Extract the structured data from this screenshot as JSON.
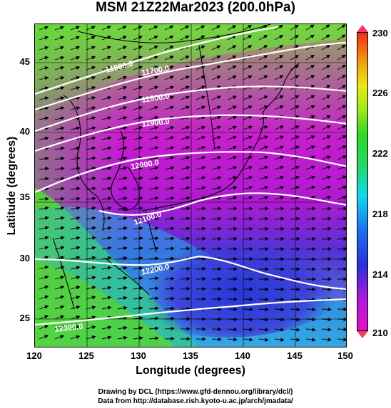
{
  "title": "MSM 21Z22Mar2023 (200.0hPa)",
  "axes": {
    "xlabel": "Longitude (degrees)",
    "ylabel": "Latitude  (degrees)",
    "x_ticks": [
      "120",
      "125",
      "130",
      "135",
      "140",
      "145",
      "150"
    ],
    "y_ticks": [
      "45",
      "40",
      "35",
      "30",
      "25"
    ]
  },
  "colorbar": {
    "labels": [
      "230",
      "226",
      "222",
      "218",
      "214",
      "210"
    ],
    "colors": [
      "#e014c6",
      "#b01ad8",
      "#2830d8",
      "#1c74ea",
      "#16d6ee",
      "#24d66a",
      "#36d628",
      "#9ce81c",
      "#e8e81a",
      "#f0a016",
      "#f02c14"
    ],
    "range": [
      210,
      230
    ]
  },
  "contours": [
    {
      "label": "11600.0"
    },
    {
      "label": "11700.0"
    },
    {
      "label": "11800.0"
    },
    {
      "label": "11900.0"
    },
    {
      "label": "12000.0"
    },
    {
      "label": "12100.0"
    },
    {
      "label": "12200.0"
    },
    {
      "label": "12300.0"
    }
  ],
  "credits": {
    "line1": "Drawing by DCL (https://www.gfd-dennou.org/library/dcl/)",
    "line2": "Data from http://database.rish.kyoto-u.ac.jp/arch/jmadata/"
  },
  "map": {
    "lon_range": [
      120,
      150
    ],
    "lat_range": [
      22.5,
      48
    ]
  }
}
